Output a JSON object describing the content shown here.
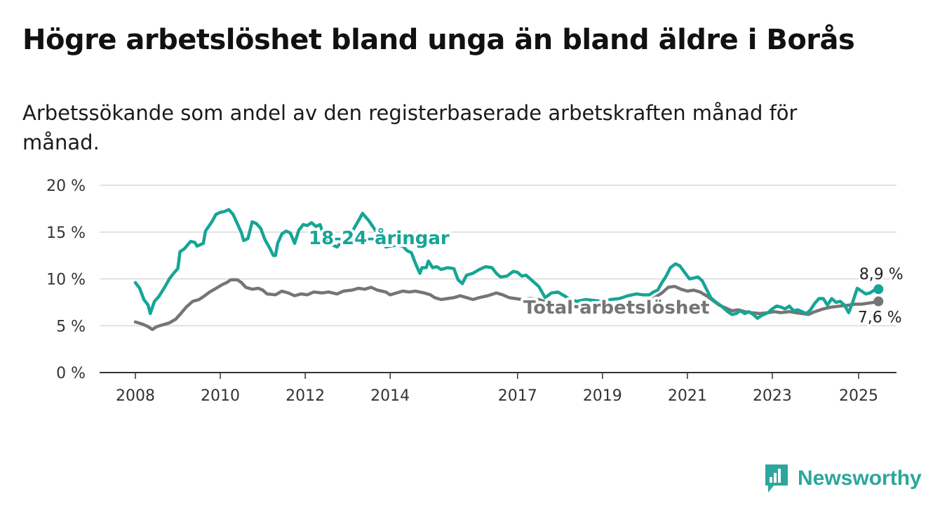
{
  "chart_data": {
    "type": "line",
    "title": "Högre arbetslöshet bland unga än bland äldre i Borås",
    "subtitle": "Arbetssökande som andel av den registerbaserade arbetskraften månad för månad.",
    "xlabel": "",
    "ylabel": "",
    "xlim": [
      2008,
      2025
    ],
    "ylim": [
      0,
      20
    ],
    "x_ticks": [
      "2008",
      "2010",
      "2012",
      "2014",
      "2017",
      "2019",
      "2021",
      "2023",
      "2025"
    ],
    "y_ticks": [
      "0 %",
      "5 %",
      "10 %",
      "15 %",
      "20 %"
    ],
    "grid": true,
    "series": [
      {
        "name": "18-24-åringar",
        "color": "#16a596",
        "end_label": "8,9 %",
        "points": [
          [
            2008.0,
            9.6
          ],
          [
            2008.1,
            9.0
          ],
          [
            2008.2,
            7.8
          ],
          [
            2008.3,
            7.2
          ],
          [
            2008.35,
            6.3
          ],
          [
            2008.45,
            7.6
          ],
          [
            2008.55,
            8.1
          ],
          [
            2008.7,
            9.2
          ],
          [
            2008.8,
            10.0
          ],
          [
            2008.9,
            10.6
          ],
          [
            2009.0,
            11.1
          ],
          [
            2009.05,
            12.9
          ],
          [
            2009.15,
            13.2
          ],
          [
            2009.3,
            14.0
          ],
          [
            2009.4,
            13.9
          ],
          [
            2009.45,
            13.5
          ],
          [
            2009.6,
            13.8
          ],
          [
            2009.65,
            15.1
          ],
          [
            2009.8,
            16.1
          ],
          [
            2009.9,
            16.9
          ],
          [
            2010.0,
            17.1
          ],
          [
            2010.1,
            17.2
          ],
          [
            2010.2,
            17.4
          ],
          [
            2010.3,
            16.9
          ],
          [
            2010.4,
            15.9
          ],
          [
            2010.5,
            14.9
          ],
          [
            2010.55,
            14.1
          ],
          [
            2010.65,
            14.3
          ],
          [
            2010.75,
            16.1
          ],
          [
            2010.85,
            15.9
          ],
          [
            2010.95,
            15.4
          ],
          [
            2011.05,
            14.2
          ],
          [
            2011.15,
            13.4
          ],
          [
            2011.25,
            12.5
          ],
          [
            2011.3,
            12.5
          ],
          [
            2011.35,
            13.8
          ],
          [
            2011.45,
            14.8
          ],
          [
            2011.55,
            15.1
          ],
          [
            2011.65,
            14.9
          ],
          [
            2011.75,
            13.8
          ],
          [
            2011.85,
            15.2
          ],
          [
            2011.95,
            15.8
          ],
          [
            2012.05,
            15.7
          ],
          [
            2012.15,
            16.0
          ],
          [
            2012.25,
            15.6
          ],
          [
            2012.35,
            15.8
          ],
          [
            2012.45,
            14.4
          ],
          [
            2012.55,
            13.8
          ],
          [
            2012.75,
            13.4
          ],
          [
            2012.9,
            14.2
          ],
          [
            2013.05,
            14.6
          ],
          [
            2013.2,
            15.8
          ],
          [
            2013.35,
            17.0
          ],
          [
            2013.5,
            16.2
          ],
          [
            2013.65,
            15.2
          ],
          [
            2013.8,
            14.5
          ],
          [
            2013.9,
            13.4
          ],
          [
            2014.0,
            13.5
          ],
          [
            2014.15,
            13.6
          ],
          [
            2014.3,
            13.5
          ],
          [
            2014.4,
            13.0
          ],
          [
            2014.5,
            12.8
          ],
          [
            2014.6,
            11.6
          ],
          [
            2014.7,
            10.6
          ],
          [
            2014.75,
            11.2
          ],
          [
            2014.85,
            11.2
          ],
          [
            2014.9,
            11.9
          ],
          [
            2015.0,
            11.2
          ],
          [
            2015.1,
            11.3
          ],
          [
            2015.2,
            11.0
          ],
          [
            2015.35,
            11.2
          ],
          [
            2015.5,
            11.1
          ],
          [
            2015.6,
            9.9
          ],
          [
            2015.7,
            9.5
          ],
          [
            2015.8,
            10.4
          ],
          [
            2015.95,
            10.6
          ],
          [
            2016.1,
            11.0
          ],
          [
            2016.25,
            11.3
          ],
          [
            2016.4,
            11.2
          ],
          [
            2016.5,
            10.6
          ],
          [
            2016.6,
            10.2
          ],
          [
            2016.75,
            10.3
          ],
          [
            2016.9,
            10.8
          ],
          [
            2017.0,
            10.7
          ],
          [
            2017.1,
            10.3
          ],
          [
            2017.2,
            10.4
          ],
          [
            2017.35,
            9.8
          ],
          [
            2017.5,
            9.2
          ],
          [
            2017.65,
            8.0
          ],
          [
            2017.8,
            8.5
          ],
          [
            2017.95,
            8.6
          ],
          [
            2018.1,
            8.2
          ],
          [
            2018.25,
            7.8
          ],
          [
            2018.4,
            7.6
          ],
          [
            2018.6,
            7.8
          ],
          [
            2018.8,
            7.7
          ],
          [
            2019.0,
            7.6
          ],
          [
            2019.2,
            7.8
          ],
          [
            2019.4,
            7.9
          ],
          [
            2019.6,
            8.2
          ],
          [
            2019.8,
            8.4
          ],
          [
            2019.95,
            8.3
          ],
          [
            2020.1,
            8.3
          ],
          [
            2020.2,
            8.6
          ],
          [
            2020.3,
            8.8
          ],
          [
            2020.4,
            9.6
          ],
          [
            2020.5,
            10.3
          ],
          [
            2020.6,
            11.2
          ],
          [
            2020.72,
            11.6
          ],
          [
            2020.82,
            11.4
          ],
          [
            2020.95,
            10.6
          ],
          [
            2021.05,
            10.0
          ],
          [
            2021.15,
            10.1
          ],
          [
            2021.25,
            10.2
          ],
          [
            2021.35,
            9.8
          ],
          [
            2021.45,
            8.9
          ],
          [
            2021.55,
            8.0
          ],
          [
            2021.65,
            7.6
          ],
          [
            2021.8,
            7.1
          ],
          [
            2021.95,
            6.5
          ],
          [
            2022.05,
            6.2
          ],
          [
            2022.15,
            6.3
          ],
          [
            2022.25,
            6.6
          ],
          [
            2022.35,
            6.3
          ],
          [
            2022.45,
            6.5
          ],
          [
            2022.55,
            6.2
          ],
          [
            2022.65,
            5.8
          ],
          [
            2022.75,
            6.1
          ],
          [
            2022.9,
            6.4
          ],
          [
            2023.0,
            6.8
          ],
          [
            2023.1,
            7.1
          ],
          [
            2023.2,
            7.0
          ],
          [
            2023.3,
            6.8
          ],
          [
            2023.4,
            7.1
          ],
          [
            2023.5,
            6.6
          ],
          [
            2023.6,
            6.7
          ],
          [
            2023.7,
            6.5
          ],
          [
            2023.8,
            6.3
          ],
          [
            2023.9,
            6.7
          ],
          [
            2024.0,
            7.4
          ],
          [
            2024.1,
            7.9
          ],
          [
            2024.2,
            7.9
          ],
          [
            2024.3,
            7.2
          ],
          [
            2024.4,
            7.9
          ],
          [
            2024.5,
            7.5
          ],
          [
            2024.6,
            7.6
          ],
          [
            2024.7,
            7.2
          ],
          [
            2024.8,
            6.4
          ],
          [
            2024.9,
            7.6
          ],
          [
            2025.0,
            9.0
          ],
          [
            2025.1,
            8.7
          ],
          [
            2025.2,
            8.4
          ],
          [
            2025.3,
            8.5
          ],
          [
            2025.4,
            8.8
          ],
          [
            2025.5,
            8.9
          ]
        ]
      },
      {
        "name": "Total arbetslöshet",
        "color": "#757575",
        "end_label": "7,6 %",
        "points": [
          [
            2008.0,
            5.4
          ],
          [
            2008.15,
            5.2
          ],
          [
            2008.3,
            4.9
          ],
          [
            2008.4,
            4.6
          ],
          [
            2008.5,
            4.9
          ],
          [
            2008.65,
            5.1
          ],
          [
            2008.8,
            5.3
          ],
          [
            2008.95,
            5.7
          ],
          [
            2009.05,
            6.2
          ],
          [
            2009.2,
            7.0
          ],
          [
            2009.35,
            7.6
          ],
          [
            2009.5,
            7.8
          ],
          [
            2009.6,
            8.1
          ],
          [
            2009.75,
            8.6
          ],
          [
            2009.9,
            9.0
          ],
          [
            2010.05,
            9.4
          ],
          [
            2010.15,
            9.6
          ],
          [
            2010.25,
            9.9
          ],
          [
            2010.4,
            9.9
          ],
          [
            2010.5,
            9.6
          ],
          [
            2010.6,
            9.1
          ],
          [
            2010.75,
            8.9
          ],
          [
            2010.9,
            9.0
          ],
          [
            2011.0,
            8.8
          ],
          [
            2011.1,
            8.4
          ],
          [
            2011.3,
            8.3
          ],
          [
            2011.45,
            8.7
          ],
          [
            2011.6,
            8.5
          ],
          [
            2011.75,
            8.2
          ],
          [
            2011.9,
            8.4
          ],
          [
            2012.05,
            8.3
          ],
          [
            2012.2,
            8.6
          ],
          [
            2012.4,
            8.5
          ],
          [
            2012.55,
            8.6
          ],
          [
            2012.75,
            8.4
          ],
          [
            2012.9,
            8.7
          ],
          [
            2013.1,
            8.8
          ],
          [
            2013.25,
            9.0
          ],
          [
            2013.4,
            8.9
          ],
          [
            2013.55,
            9.1
          ],
          [
            2013.7,
            8.8
          ],
          [
            2013.9,
            8.6
          ],
          [
            2014.0,
            8.3
          ],
          [
            2014.15,
            8.5
          ],
          [
            2014.3,
            8.7
          ],
          [
            2014.45,
            8.6
          ],
          [
            2014.6,
            8.7
          ],
          [
            2014.8,
            8.5
          ],
          [
            2014.95,
            8.3
          ],
          [
            2015.05,
            8.0
          ],
          [
            2015.2,
            7.8
          ],
          [
            2015.35,
            7.9
          ],
          [
            2015.5,
            8.0
          ],
          [
            2015.65,
            8.2
          ],
          [
            2015.8,
            8.0
          ],
          [
            2015.95,
            7.8
          ],
          [
            2016.1,
            8.0
          ],
          [
            2016.3,
            8.2
          ],
          [
            2016.5,
            8.5
          ],
          [
            2016.65,
            8.3
          ],
          [
            2016.8,
            8.0
          ],
          [
            2016.95,
            7.9
          ],
          [
            2017.1,
            7.8
          ],
          [
            2017.3,
            7.9
          ],
          [
            2017.5,
            7.8
          ],
          [
            2017.7,
            7.5
          ],
          [
            2017.9,
            7.3
          ],
          [
            2018.2,
            7.1
          ],
          [
            2018.5,
            7.0
          ],
          [
            2018.8,
            6.9
          ],
          [
            2019.1,
            6.9
          ],
          [
            2019.4,
            7.0
          ],
          [
            2019.7,
            7.2
          ],
          [
            2020.0,
            7.5
          ],
          [
            2020.2,
            7.9
          ],
          [
            2020.4,
            8.5
          ],
          [
            2020.55,
            9.1
          ],
          [
            2020.7,
            9.2
          ],
          [
            2020.85,
            8.9
          ],
          [
            2021.0,
            8.7
          ],
          [
            2021.15,
            8.8
          ],
          [
            2021.3,
            8.6
          ],
          [
            2021.45,
            8.2
          ],
          [
            2021.6,
            7.7
          ],
          [
            2021.75,
            7.2
          ],
          [
            2021.9,
            6.9
          ],
          [
            2022.05,
            6.6
          ],
          [
            2022.2,
            6.7
          ],
          [
            2022.35,
            6.5
          ],
          [
            2022.5,
            6.4
          ],
          [
            2022.7,
            6.3
          ],
          [
            2022.9,
            6.4
          ],
          [
            2023.05,
            6.5
          ],
          [
            2023.2,
            6.4
          ],
          [
            2023.4,
            6.5
          ],
          [
            2023.55,
            6.4
          ],
          [
            2023.7,
            6.3
          ],
          [
            2023.85,
            6.2
          ],
          [
            2024.0,
            6.5
          ],
          [
            2024.2,
            6.8
          ],
          [
            2024.4,
            7.0
          ],
          [
            2024.6,
            7.1
          ],
          [
            2024.8,
            7.2
          ],
          [
            2024.95,
            7.3
          ],
          [
            2025.1,
            7.3
          ],
          [
            2025.25,
            7.4
          ],
          [
            2025.4,
            7.5
          ],
          [
            2025.5,
            7.6
          ]
        ]
      }
    ]
  },
  "branding": {
    "name": "Newsworthy",
    "icon": "newsworthy-logo-icon",
    "color": "#2ba79b"
  }
}
